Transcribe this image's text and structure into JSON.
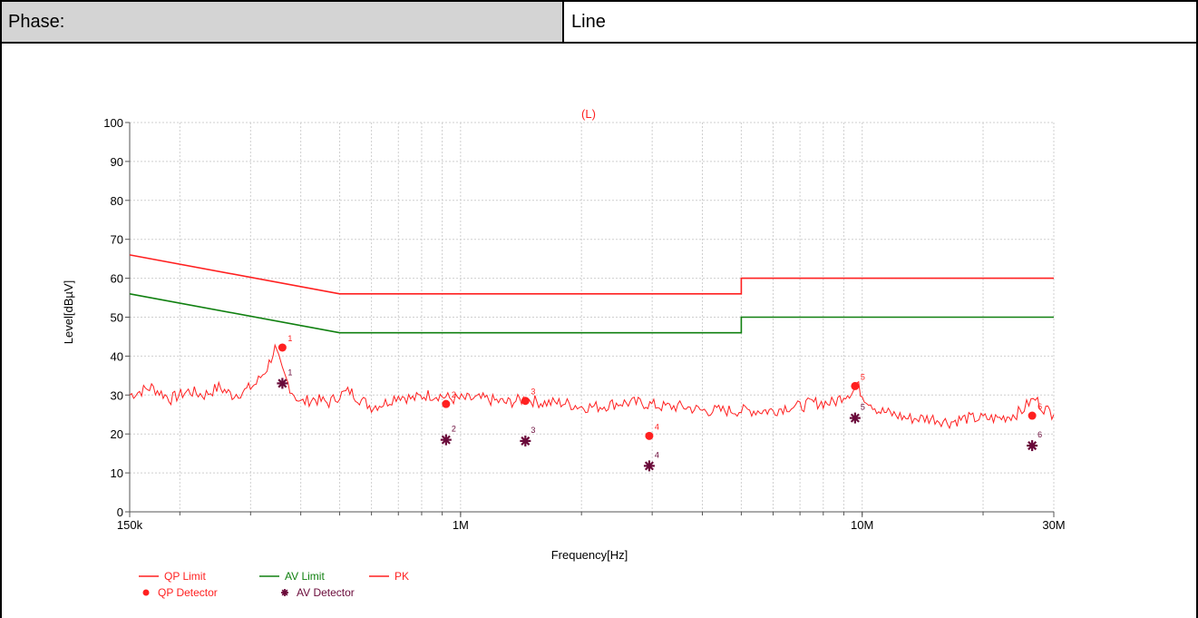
{
  "header": {
    "phase_label": "Phase:",
    "phase_value": "Line"
  },
  "colors": {
    "qp": "#ff2020",
    "av": "#108010",
    "pk": "#ff2020",
    "av_detector": "#6a0a3a",
    "grid": "#cfcfcf",
    "axis": "#555555"
  },
  "chart_data": {
    "type": "line",
    "title": "(L)",
    "xlabel": "Frequency[Hz]",
    "ylabel": "Level[dBµV]",
    "xscale": "log",
    "xlim": [
      150000,
      30000000
    ],
    "ylim": [
      0,
      100
    ],
    "xticks": [
      {
        "value": 150000,
        "label": "150k"
      },
      {
        "value": 1000000,
        "label": "1M"
      },
      {
        "value": 10000000,
        "label": "10M"
      },
      {
        "value": 30000000,
        "label": "30M"
      }
    ],
    "yticks": [
      0,
      10,
      20,
      30,
      40,
      50,
      60,
      70,
      80,
      90,
      100
    ],
    "grid": true,
    "legend_position": "bottom-left",
    "series": [
      {
        "name": "QP Limit",
        "kind": "line",
        "color": "#ff2020",
        "x": [
          150000,
          500000,
          5000000,
          5000000,
          30000000
        ],
        "y": [
          66,
          56,
          56,
          60,
          60
        ]
      },
      {
        "name": "AV Limit",
        "kind": "line",
        "color": "#108010",
        "x": [
          150000,
          500000,
          5000000,
          5000000,
          30000000
        ],
        "y": [
          56,
          46,
          46,
          50,
          50
        ]
      },
      {
        "name": "PK",
        "kind": "line",
        "color": "#ff2020",
        "x": [
          150000,
          170000,
          190000,
          210000,
          230000,
          250000,
          270000,
          290000,
          310000,
          330000,
          345000,
          360000,
          380000,
          400000,
          430000,
          470000,
          500000,
          530000,
          560000,
          600000,
          650000,
          700000,
          760000,
          820000,
          880000,
          950000,
          1050000,
          1150000,
          1300000,
          1450000,
          1600000,
          1800000,
          2000000,
          2200000,
          2500000,
          2800000,
          3200000,
          3600000,
          4000000,
          4500000,
          5000000,
          5500000,
          6000000,
          6500000,
          7000000,
          7500000,
          8000000,
          8500000,
          9000000,
          9500000,
          9700000,
          10000000,
          10500000,
          11000000,
          12000000,
          13000000,
          14000000,
          15000000,
          16500000,
          18000000,
          20000000,
          22000000,
          24000000,
          25000000,
          26000000,
          27000000,
          28000000,
          29000000,
          30000000
        ],
        "y": [
          30,
          32,
          29,
          31,
          30,
          32,
          30,
          31,
          33,
          37,
          42,
          36,
          31,
          28,
          29,
          28,
          30,
          31,
          29,
          27,
          28,
          30,
          29,
          30,
          30,
          29,
          29,
          29,
          28,
          29,
          28,
          28,
          27,
          27,
          28,
          28,
          27,
          27,
          26,
          26,
          26,
          26,
          26,
          27,
          27,
          28,
          28,
          28,
          30,
          31,
          33,
          30,
          28,
          26,
          25,
          24,
          24,
          24,
          23,
          24,
          24,
          24,
          25,
          26,
          28,
          29,
          27,
          26,
          25
        ]
      },
      {
        "name": "QP Detector",
        "kind": "marker",
        "marker": "dot",
        "color": "#ff2020",
        "x": [
          360000,
          920000,
          1450000,
          2950000,
          9600000,
          26500000
        ],
        "y": [
          42.2,
          27.7,
          28.5,
          19.5,
          32.3,
          24.7
        ],
        "labels": [
          "1",
          "2",
          "3",
          "4",
          "5",
          "6"
        ]
      },
      {
        "name": "AV Detector",
        "kind": "marker",
        "marker": "star",
        "color": "#6a0a3a",
        "x": [
          360000,
          920000,
          1450000,
          2950000,
          9600000,
          26500000
        ],
        "y": [
          33.0,
          18.5,
          18.2,
          11.8,
          24.1,
          17.0
        ],
        "labels": [
          "1",
          "2",
          "3",
          "4",
          "5",
          "6"
        ]
      }
    ]
  }
}
